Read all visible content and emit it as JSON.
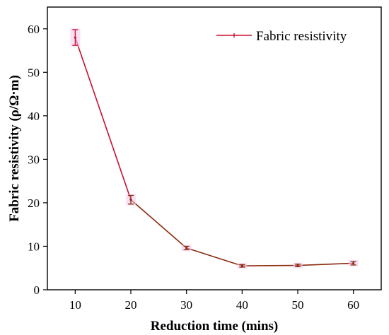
{
  "chart_data": {
    "type": "line",
    "xlabel": "Reduction time (mins)",
    "ylabel": "Fabric resistivity (ρ/Ω·m)",
    "xlim": [
      5,
      65
    ],
    "ylim": [
      0,
      65
    ],
    "xticks": [
      10,
      20,
      30,
      40,
      50,
      60
    ],
    "yticks": [
      0,
      10,
      20,
      30,
      40,
      50,
      60
    ],
    "grid": false,
    "legend_position": "top-right",
    "series": [
      {
        "name": "Fabric resistivity",
        "color": "#c8102e",
        "x": [
          10,
          20,
          30,
          40,
          50,
          60
        ],
        "y": [
          58.0,
          20.7,
          9.6,
          5.5,
          5.6,
          6.1
        ],
        "error": [
          1.8,
          1.0,
          0.4,
          0.3,
          0.3,
          0.4
        ]
      }
    ]
  }
}
